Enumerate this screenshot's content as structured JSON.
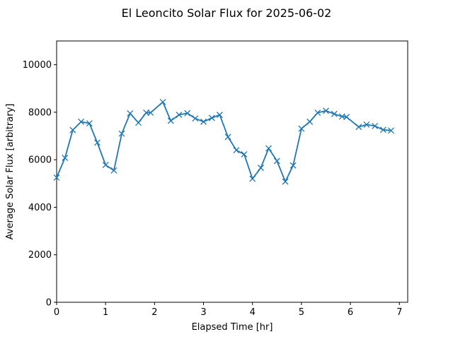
{
  "chart_data": {
    "type": "line",
    "title": "El Leoncito Solar Flux for 2025-06-02",
    "xlabel": "Elapsed Time [hr]",
    "ylabel": "Average Solar Flux [arbitrary]",
    "xlim": [
      0,
      7.17
    ],
    "ylim": [
      0,
      11000
    ],
    "xticks": [
      0,
      1,
      2,
      3,
      4,
      5,
      6,
      7
    ],
    "yticks": [
      0,
      2000,
      4000,
      6000,
      8000,
      10000
    ],
    "grid": false,
    "marker": "x",
    "line_color": "#1f77b4",
    "x": [
      0.0,
      0.17,
      0.33,
      0.5,
      0.67,
      0.83,
      1.0,
      1.17,
      1.33,
      1.5,
      1.67,
      1.83,
      1.92,
      2.17,
      2.33,
      2.5,
      2.67,
      2.83,
      3.0,
      3.17,
      3.33,
      3.5,
      3.67,
      3.83,
      4.0,
      4.17,
      4.33,
      4.5,
      4.67,
      4.83,
      5.0,
      5.17,
      5.33,
      5.5,
      5.67,
      5.83,
      5.92,
      6.17,
      6.33,
      6.5,
      6.67,
      6.83
    ],
    "y": [
      5250,
      6080,
      7250,
      7600,
      7530,
      6720,
      5780,
      5550,
      7100,
      7950,
      7560,
      7980,
      7980,
      8430,
      7640,
      7890,
      7960,
      7740,
      7600,
      7760,
      7890,
      6960,
      6400,
      6230,
      5200,
      5660,
      6480,
      5950,
      5080,
      5760,
      7310,
      7600,
      7980,
      8060,
      7930,
      7820,
      7800,
      7380,
      7480,
      7420,
      7260,
      7230
    ]
  }
}
